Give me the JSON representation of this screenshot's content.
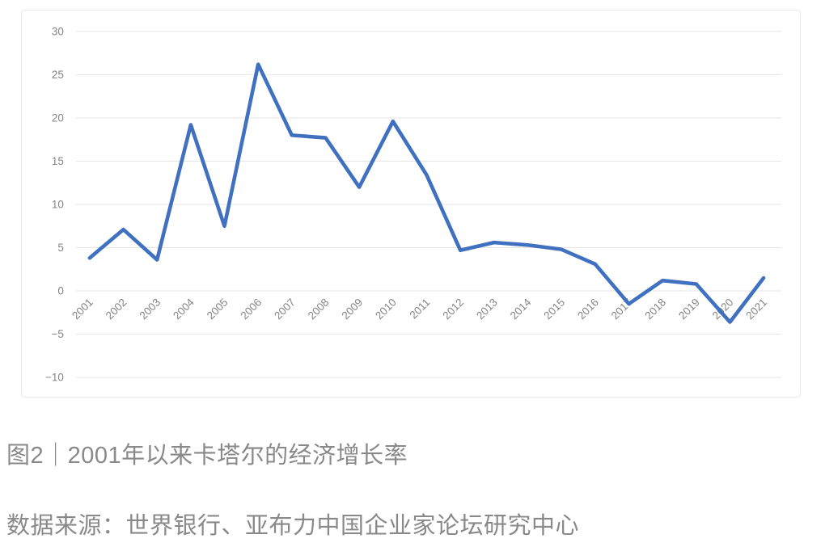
{
  "chart_data": {
    "type": "line",
    "x_labels": [
      "2001",
      "2002",
      "2003",
      "2004",
      "2005",
      "2006",
      "2007",
      "2008",
      "2009",
      "2010",
      "2011",
      "2012",
      "2013",
      "2014",
      "2015",
      "2016",
      "2017",
      "2018",
      "2019",
      "2020",
      "2021"
    ],
    "values": [
      3.8,
      7.1,
      3.6,
      19.2,
      7.5,
      26.2,
      18.0,
      17.7,
      12.0,
      19.6,
      13.4,
      4.7,
      5.6,
      5.3,
      4.8,
      3.1,
      -1.5,
      1.2,
      0.8,
      -3.6,
      1.5
    ],
    "ylim": [
      -10,
      30
    ],
    "yticks": [
      30,
      25,
      20,
      15,
      10,
      5,
      0,
      -5,
      -10
    ],
    "ytick_labels": [
      "30",
      "25",
      "20",
      "15",
      "10",
      "5",
      "0",
      "−5",
      "−10"
    ],
    "grid": true,
    "legend_position": "none",
    "line_color": "#4070c0",
    "gridline_color": "#e6e6e6",
    "axis_text_color": "#858585"
  },
  "caption": {
    "figure": "图2｜2001年以来卡塔尔的经济增长率",
    "source": "数据来源：世界银行、亚布力中国企业家论坛研究中心"
  }
}
